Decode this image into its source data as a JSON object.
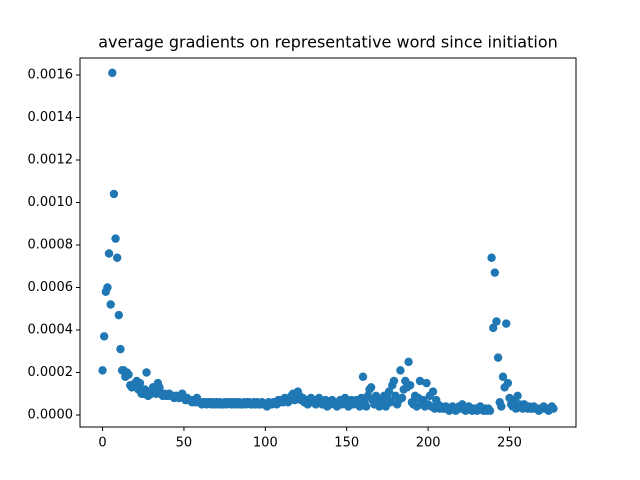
{
  "chart_data": {
    "type": "scatter",
    "title": "average gradients on representative word since initiation",
    "color": "#1f77b4",
    "x": [
      0,
      1,
      2,
      3,
      4,
      5,
      6,
      7,
      8,
      9,
      10,
      11,
      12,
      13,
      14,
      15,
      16,
      17,
      18,
      19,
      20,
      21,
      22,
      23,
      24,
      25,
      26,
      27,
      28,
      29,
      30,
      31,
      32,
      33,
      34,
      35,
      36,
      37,
      38,
      39,
      40,
      41,
      42,
      43,
      44,
      45,
      46,
      47,
      48,
      49,
      50,
      51,
      52,
      53,
      54,
      55,
      56,
      57,
      58,
      59,
      60,
      61,
      62,
      63,
      64,
      65,
      66,
      67,
      68,
      69,
      70,
      71,
      72,
      73,
      74,
      75,
      76,
      77,
      78,
      79,
      80,
      81,
      82,
      83,
      84,
      85,
      86,
      87,
      88,
      89,
      90,
      91,
      92,
      93,
      94,
      95,
      96,
      97,
      98,
      99,
      100,
      101,
      102,
      103,
      104,
      105,
      106,
      107,
      108,
      109,
      110,
      111,
      112,
      113,
      114,
      115,
      116,
      117,
      118,
      119,
      120,
      121,
      122,
      123,
      124,
      125,
      126,
      127,
      128,
      129,
      130,
      131,
      132,
      133,
      134,
      135,
      136,
      137,
      138,
      139,
      140,
      141,
      142,
      143,
      144,
      145,
      146,
      147,
      148,
      149,
      150,
      151,
      152,
      153,
      154,
      155,
      156,
      157,
      158,
      159,
      160,
      161,
      162,
      163,
      164,
      165,
      166,
      167,
      168,
      169,
      170,
      171,
      172,
      173,
      174,
      175,
      176,
      177,
      178,
      179,
      180,
      181,
      182,
      183,
      184,
      185,
      186,
      187,
      188,
      189,
      190,
      191,
      192,
      193,
      194,
      195,
      196,
      197,
      198,
      199,
      200,
      201,
      202,
      203,
      204,
      205,
      206,
      207,
      208,
      209,
      210,
      211,
      212,
      213,
      214,
      215,
      216,
      217,
      218,
      219,
      220,
      221,
      222,
      223,
      224,
      225,
      226,
      227,
      228,
      229,
      230,
      231,
      232,
      233,
      234,
      235,
      236,
      237,
      238,
      239,
      240,
      241,
      242,
      243,
      244,
      245,
      246,
      247,
      248,
      249,
      250,
      251,
      252,
      253,
      254,
      255,
      256,
      257,
      258,
      259,
      260,
      261,
      262,
      263,
      264,
      265,
      266,
      267,
      268,
      269,
      270,
      271,
      272,
      273,
      274,
      275,
      276,
      277
    ],
    "values": [
      0.00021,
      0.00037,
      0.00058,
      0.0006,
      0.00076,
      0.00052,
      0.00161,
      0.00104,
      0.00083,
      0.00074,
      0.00047,
      0.00031,
      0.00021,
      0.00021,
      0.00018,
      0.0002,
      0.00019,
      0.00014,
      0.00013,
      0.00014,
      0.00015,
      0.00016,
      0.00012,
      0.00015,
      0.0001,
      0.0001,
      0.00012,
      0.0002,
      9e-05,
      0.00011,
      0.0001,
      0.00013,
      0.00012,
      0.0001,
      0.00015,
      0.00013,
      0.0001,
      9e-05,
      0.0001,
      9e-05,
      9e-05,
      0.0001,
      9e-05,
      9e-05,
      8e-05,
      9e-05,
      9e-05,
      8e-05,
      9e-05,
      0.0001,
      8e-05,
      7e-05,
      8e-05,
      7e-05,
      7e-05,
      6e-05,
      7e-05,
      6e-05,
      8e-05,
      6e-05,
      6e-05,
      5e-05,
      6e-05,
      6e-05,
      5e-05,
      6e-05,
      6e-05,
      5e-05,
      6e-05,
      5e-05,
      6e-05,
      5e-05,
      6e-05,
      5e-05,
      5e-05,
      6e-05,
      5e-05,
      6e-05,
      6e-05,
      5e-05,
      6e-05,
      5e-05,
      6e-05,
      5e-05,
      6e-05,
      5e-05,
      5e-05,
      6e-05,
      5e-05,
      6e-05,
      6e-05,
      5e-05,
      5e-05,
      6e-05,
      5e-05,
      6e-05,
      5e-05,
      5e-05,
      6e-05,
      5e-05,
      5e-05,
      4e-05,
      6e-05,
      5e-05,
      5e-05,
      6e-05,
      6e-05,
      5e-05,
      7e-05,
      6e-05,
      7e-05,
      6e-05,
      8e-05,
      7e-05,
      6e-05,
      8e-05,
      9e-05,
      0.0001,
      7e-05,
      0.0001,
      0.00011,
      9e-05,
      7e-05,
      8e-05,
      6e-05,
      7e-05,
      5e-05,
      7e-05,
      8e-05,
      6e-05,
      7e-05,
      5e-05,
      6e-05,
      8e-05,
      7e-05,
      5e-05,
      6e-05,
      7e-05,
      4e-05,
      6e-05,
      5e-05,
      7e-05,
      6e-05,
      5e-05,
      4e-05,
      6e-05,
      7e-05,
      5e-05,
      6e-05,
      8e-05,
      5e-05,
      4e-05,
      6e-05,
      7e-05,
      5e-05,
      6e-05,
      7e-05,
      5e-05,
      4e-05,
      8e-05,
      0.00018,
      6e-05,
      4e-05,
      9e-05,
      0.00012,
      0.00013,
      7e-05,
      5e-05,
      9e-05,
      6e-05,
      4e-05,
      7e-05,
      5e-05,
      9e-05,
      4e-05,
      8e-05,
      0.00011,
      6e-05,
      0.00014,
      0.00016,
      9e-05,
      5e-05,
      7e-05,
      0.00021,
      8e-05,
      0.00012,
      0.00016,
      0.00013,
      0.00025,
      0.00014,
      6e-05,
      5e-05,
      9e-05,
      4e-05,
      8e-05,
      0.00016,
      5e-05,
      7e-05,
      4e-05,
      0.00015,
      5e-05,
      9e-05,
      4e-05,
      0.00011,
      3e-05,
      7e-05,
      5e-05,
      3e-05,
      4e-05,
      3e-05,
      3e-05,
      4e-05,
      3e-05,
      2e-05,
      3e-05,
      4e-05,
      3e-05,
      2e-05,
      3e-05,
      4e-05,
      3e-05,
      5e-05,
      3e-05,
      2e-05,
      3e-05,
      4e-05,
      3e-05,
      2e-05,
      3e-05,
      3e-05,
      2e-05,
      3e-05,
      4e-05,
      3e-05,
      2e-05,
      3e-05,
      2e-05,
      3e-05,
      2e-05,
      0.00074,
      0.00041,
      0.00067,
      0.00044,
      0.00027,
      6e-05,
      4e-05,
      0.00018,
      0.00013,
      0.00043,
      0.00015,
      8e-05,
      5e-05,
      4e-05,
      7e-05,
      3e-05,
      9e-05,
      5e-05,
      4e-05,
      3e-05,
      5e-05,
      4e-05,
      3e-05,
      4e-05,
      3e-05,
      3e-05,
      4e-05,
      3e-05,
      3e-05,
      2e-05,
      3e-05,
      3e-05,
      4e-05,
      3e-05,
      3e-05,
      2e-05,
      3e-05,
      4e-05,
      3e-05
    ],
    "xlim": [
      -13.85,
      290.85
    ],
    "ylim": [
      -5.65e-05,
      0.00168
    ],
    "xticks": [
      0,
      50,
      100,
      150,
      200,
      250
    ],
    "yticks": [
      {
        "value": 0,
        "label": "0.0000"
      },
      {
        "value": 0.0002,
        "label": "0.0002"
      },
      {
        "value": 0.0004,
        "label": "0.0004"
      },
      {
        "value": 0.0006,
        "label": "0.0006"
      },
      {
        "value": 0.0008,
        "label": "0.0008"
      },
      {
        "value": 0.001,
        "label": "0.0010"
      },
      {
        "value": 0.0012,
        "label": "0.0012"
      },
      {
        "value": 0.0014,
        "label": "0.0014"
      },
      {
        "value": 0.0016,
        "label": "0.0016"
      }
    ]
  }
}
